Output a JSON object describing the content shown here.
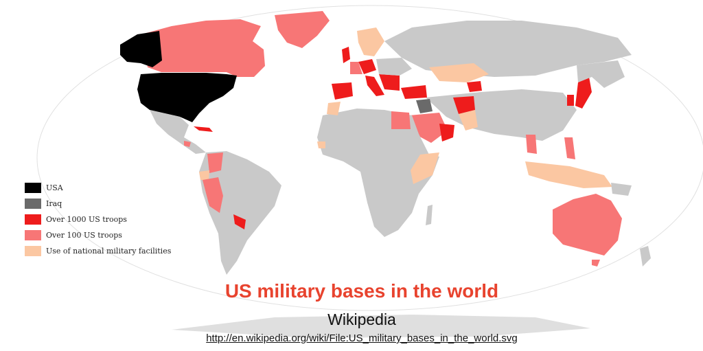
{
  "map": {
    "colors": {
      "ocean": "#ffffff",
      "neutral": "#c9c9c9",
      "usa": "#000000",
      "iraq": "#6a6a6a",
      "over1000": "#ee1c1c",
      "over100": "#f77676",
      "national": "#fbc7a2"
    },
    "legend": [
      {
        "label": "USA",
        "color": "#000000"
      },
      {
        "label": "Iraq",
        "color": "#6a6a6a"
      },
      {
        "label": "Over 1000 US troops",
        "color": "#ee1c1c"
      },
      {
        "label": "Over 100 US troops",
        "color": "#f77676"
      },
      {
        "label": "Use of national military facilities",
        "color": "#fbc7a2"
      }
    ]
  },
  "caption": {
    "title": "US military bases in the world",
    "title_color": "#e8432e",
    "source": "Wikipedia",
    "url": "http://en.wikipedia.org/wiki/File:US_military_bases_in_the_world.svg"
  }
}
